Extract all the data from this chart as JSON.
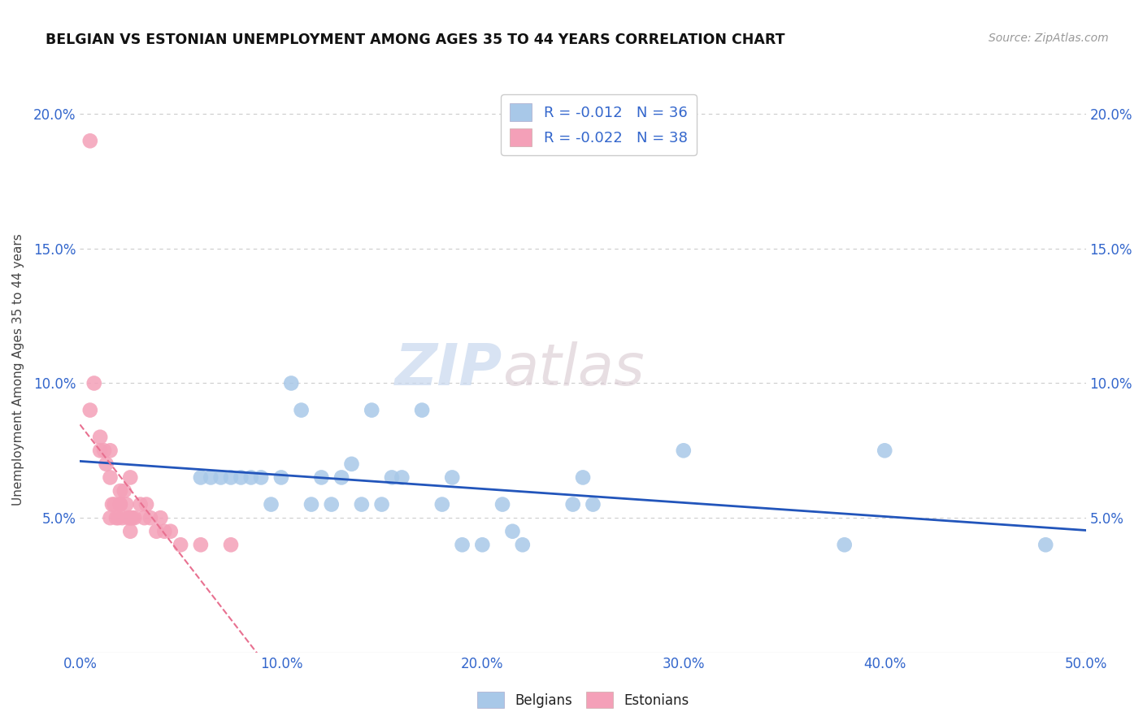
{
  "title": "BELGIAN VS ESTONIAN UNEMPLOYMENT AMONG AGES 35 TO 44 YEARS CORRELATION CHART",
  "source": "Source: ZipAtlas.com",
  "ylabel": "Unemployment Among Ages 35 to 44 years",
  "xlim": [
    0.0,
    0.5
  ],
  "ylim": [
    0.0,
    0.21
  ],
  "xticks": [
    0.0,
    0.1,
    0.2,
    0.3,
    0.4,
    0.5
  ],
  "xticklabels": [
    "0.0%",
    "10.0%",
    "20.0%",
    "30.0%",
    "40.0%",
    "50.0%"
  ],
  "yticks": [
    0.0,
    0.05,
    0.1,
    0.15,
    0.2
  ],
  "yticklabels": [
    "",
    "5.0%",
    "10.0%",
    "15.0%",
    "20.0%"
  ],
  "belgian_R": "-0.012",
  "belgian_N": "36",
  "estonian_R": "-0.022",
  "estonian_N": "38",
  "belgian_color": "#a8c8e8",
  "estonian_color": "#f4a0b8",
  "trendline_belgian_color": "#2255bb",
  "trendline_estonian_color": "#e87090",
  "belgians_x": [
    0.06,
    0.065,
    0.07,
    0.075,
    0.08,
    0.085,
    0.09,
    0.095,
    0.1,
    0.105,
    0.11,
    0.115,
    0.12,
    0.125,
    0.13,
    0.135,
    0.14,
    0.145,
    0.15,
    0.155,
    0.16,
    0.17,
    0.18,
    0.185,
    0.19,
    0.2,
    0.21,
    0.215,
    0.22,
    0.245,
    0.25,
    0.255,
    0.3,
    0.38,
    0.4,
    0.48
  ],
  "belgians_y": [
    0.065,
    0.065,
    0.065,
    0.065,
    0.065,
    0.065,
    0.065,
    0.055,
    0.065,
    0.1,
    0.09,
    0.055,
    0.065,
    0.055,
    0.065,
    0.07,
    0.055,
    0.09,
    0.055,
    0.065,
    0.065,
    0.09,
    0.055,
    0.065,
    0.04,
    0.04,
    0.055,
    0.045,
    0.04,
    0.055,
    0.065,
    0.055,
    0.075,
    0.04,
    0.075,
    0.04
  ],
  "estonians_x": [
    0.005,
    0.005,
    0.007,
    0.01,
    0.01,
    0.012,
    0.013,
    0.015,
    0.015,
    0.015,
    0.016,
    0.017,
    0.018,
    0.019,
    0.02,
    0.02,
    0.02,
    0.021,
    0.022,
    0.023,
    0.024,
    0.025,
    0.025,
    0.025,
    0.025,
    0.026,
    0.027,
    0.03,
    0.032,
    0.033,
    0.035,
    0.038,
    0.04,
    0.042,
    0.045,
    0.05,
    0.06,
    0.075
  ],
  "estonians_y": [
    0.19,
    0.09,
    0.1,
    0.08,
    0.075,
    0.075,
    0.07,
    0.075,
    0.065,
    0.05,
    0.055,
    0.055,
    0.05,
    0.05,
    0.06,
    0.055,
    0.055,
    0.05,
    0.06,
    0.055,
    0.05,
    0.065,
    0.05,
    0.05,
    0.045,
    0.05,
    0.05,
    0.055,
    0.05,
    0.055,
    0.05,
    0.045,
    0.05,
    0.045,
    0.045,
    0.04,
    0.04,
    0.04
  ],
  "watermark_zip": "ZIP",
  "watermark_atlas": "atlas",
  "background_color": "#ffffff",
  "grid_color": "#cccccc"
}
